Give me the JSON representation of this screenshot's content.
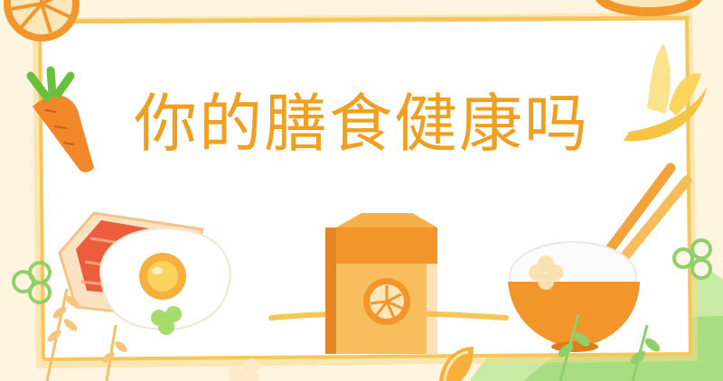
{
  "title": "你的膳食健康吗",
  "icons": [
    "orange-slice-icon",
    "carrot-icon",
    "banana-icon",
    "chopsticks-icon",
    "rice-bowl-icon",
    "juice-carton-icon",
    "fried-egg-icon",
    "salmon-toast-icon",
    "flower-icon",
    "wheat-icon",
    "leaf-icon"
  ],
  "colors": {
    "background": "#fdf5e0",
    "frame_white": "#ffffff",
    "frame_border": "#f7c65a",
    "title": "#f0a020",
    "orange": "#f2962b",
    "light_orange": "#f8c56a",
    "green": "#8fd06a",
    "salmon": "#ec5d3d"
  }
}
